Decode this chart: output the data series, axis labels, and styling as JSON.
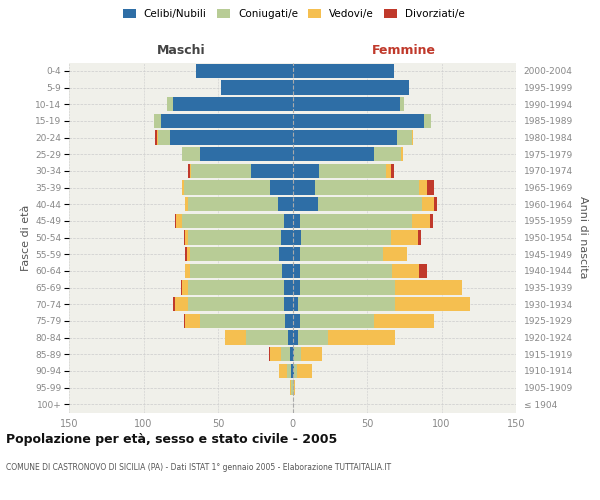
{
  "age_groups": [
    "100+",
    "95-99",
    "90-94",
    "85-89",
    "80-84",
    "75-79",
    "70-74",
    "65-69",
    "60-64",
    "55-59",
    "50-54",
    "45-49",
    "40-44",
    "35-39",
    "30-34",
    "25-29",
    "20-24",
    "15-19",
    "10-14",
    "5-9",
    "0-4"
  ],
  "birth_years": [
    "≤ 1904",
    "1905-1909",
    "1910-1914",
    "1915-1919",
    "1920-1924",
    "1925-1929",
    "1930-1934",
    "1935-1939",
    "1940-1944",
    "1945-1949",
    "1950-1954",
    "1955-1959",
    "1960-1964",
    "1965-1969",
    "1970-1974",
    "1975-1979",
    "1980-1984",
    "1985-1989",
    "1990-1994",
    "1995-1999",
    "2000-2004"
  ],
  "colors": {
    "celibe": "#2E6EA6",
    "coniugato": "#B8CC96",
    "vedovo": "#F5BF50",
    "divorziato": "#C0392B"
  },
  "maschi": {
    "celibe": [
      0,
      0,
      1,
      2,
      3,
      5,
      6,
      6,
      7,
      9,
      8,
      6,
      10,
      15,
      28,
      62,
      82,
      88,
      80,
      48,
      65
    ],
    "coniugato": [
      0,
      1,
      3,
      6,
      28,
      57,
      64,
      64,
      62,
      60,
      62,
      68,
      60,
      58,
      40,
      12,
      8,
      5,
      4,
      0,
      0
    ],
    "vedovo": [
      0,
      1,
      5,
      7,
      14,
      10,
      9,
      4,
      3,
      2,
      2,
      4,
      2,
      1,
      1,
      0,
      1,
      0,
      0,
      0,
      0
    ],
    "divorziato": [
      0,
      0,
      0,
      1,
      0,
      1,
      1,
      1,
      0,
      1,
      1,
      1,
      0,
      0,
      1,
      0,
      1,
      0,
      0,
      0,
      0
    ]
  },
  "femmine": {
    "nubile": [
      0,
      0,
      1,
      1,
      4,
      5,
      4,
      5,
      5,
      5,
      6,
      5,
      17,
      15,
      18,
      55,
      70,
      88,
      72,
      78,
      68
    ],
    "coniugata": [
      0,
      1,
      2,
      5,
      20,
      50,
      65,
      64,
      62,
      56,
      60,
      75,
      70,
      70,
      45,
      18,
      10,
      5,
      3,
      0,
      0
    ],
    "vedova": [
      0,
      1,
      10,
      14,
      45,
      40,
      50,
      45,
      18,
      16,
      18,
      12,
      8,
      5,
      3,
      1,
      1,
      0,
      0,
      0,
      0
    ],
    "divorziata": [
      0,
      0,
      0,
      0,
      0,
      0,
      0,
      0,
      5,
      0,
      2,
      2,
      2,
      5,
      2,
      0,
      0,
      0,
      0,
      0,
      0
    ]
  },
  "xlim": 150,
  "title": "Popolazione per età, sesso e stato civile - 2005",
  "subtitle": "COMUNE DI CASTRONOVO DI SICILIA (PA) - Dati ISTAT 1° gennaio 2005 - Elaborazione TUTTAITALIA.IT",
  "ylabel_left": "Fasce di età",
  "ylabel_right": "Anni di nascita",
  "xlabel_maschi": "Maschi",
  "xlabel_femmine": "Femmine",
  "legend_labels": [
    "Celibi/Nubili",
    "Coniugati/e",
    "Vedovi/e",
    "Divorziati/e"
  ],
  "bg_color": "#FFFFFF",
  "plot_bg": "#F0F0EA",
  "grid_color": "#CCCCCC",
  "tick_color": "#888888"
}
